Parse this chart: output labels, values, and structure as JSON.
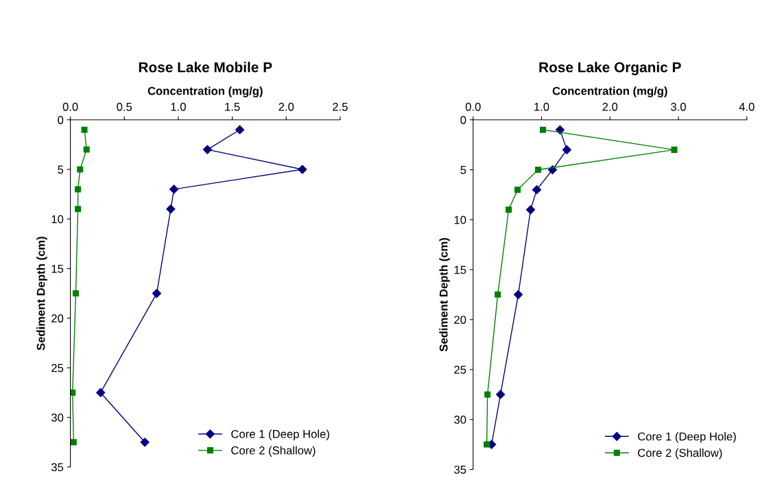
{
  "chart_data": [
    {
      "type": "line",
      "title": "Rose Lake Mobile P",
      "xlabel": "Concentration (mg/g)",
      "ylabel": "Sediment Depth (cm)",
      "xlim": [
        0,
        2.5
      ],
      "xticks": [
        {
          "value": 0,
          "label": "0.0"
        },
        0.5,
        {
          "value": 1,
          "label": "1.0"
        },
        1.5,
        {
          "value": 2,
          "label": "2.0"
        },
        2.5
      ],
      "ylim": [
        35,
        0
      ],
      "yticks": [
        0,
        5,
        10,
        15,
        20,
        25,
        30,
        35
      ],
      "grid": false,
      "legend": "bottom right",
      "series": [
        {
          "name": "Core 1 (Deep Hole)",
          "color": "#000080",
          "marker": "diamond",
          "x": [
            1.57,
            1.27,
            2.15,
            0.96,
            0.93,
            0.8,
            0.28,
            0.69
          ],
          "values": [
            1,
            3,
            5,
            7,
            9,
            17.5,
            27.5,
            32.5
          ]
        },
        {
          "name": "Core 2 (Shallow)",
          "color": "#008000",
          "marker": "square",
          "x": [
            0.13,
            0.15,
            0.09,
            0.07,
            0.07,
            0.05,
            0.02,
            0.03
          ],
          "values": [
            1,
            3,
            5,
            7,
            9,
            17.5,
            27.5,
            32.5
          ]
        }
      ]
    },
    {
      "type": "line",
      "title": "Rose Lake Organic P",
      "xlabel": "Concentration (mg/g)",
      "ylabel": "Sediment Depth (cm)",
      "xlim": [
        0,
        4
      ],
      "xticks": [
        {
          "value": 0,
          "label": "0.0"
        },
        {
          "value": 1,
          "label": "1.0"
        },
        {
          "value": 2,
          "label": "2.0"
        },
        {
          "value": 3,
          "label": "3.0"
        },
        {
          "value": 4,
          "label": "4.0"
        }
      ],
      "ylim": [
        35,
        0
      ],
      "yticks": [
        0,
        5,
        10,
        15,
        20,
        25,
        30,
        35
      ],
      "grid": false,
      "legend": "bottom right",
      "series": [
        {
          "name": "Core 1 (Deep Hole)",
          "color": "#000080",
          "marker": "diamond",
          "x": [
            1.27,
            1.37,
            1.16,
            0.93,
            0.84,
            0.66,
            0.4,
            0.27
          ],
          "values": [
            1,
            3,
            5,
            7,
            9,
            17.5,
            27.5,
            32.5
          ]
        },
        {
          "name": "Core 2 (Shallow)",
          "color": "#008000",
          "marker": "square",
          "x": [
            1.02,
            2.94,
            0.95,
            0.65,
            0.52,
            0.36,
            0.21,
            0.2
          ],
          "values": [
            1,
            3,
            5,
            7,
            9,
            17.5,
            27.5,
            32.5
          ]
        }
      ]
    }
  ]
}
